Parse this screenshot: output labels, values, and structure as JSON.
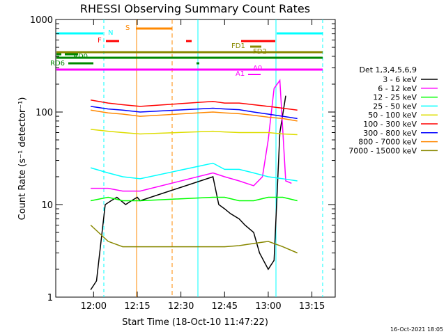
{
  "chart_data": {
    "type": "line",
    "title": "RHESSI Observing Summary Count Rates",
    "xlabel": "Start Time (18-Oct-10 11:47:22)",
    "ylabel": "Count Rate (s⁻¹ detector⁻¹)",
    "y_scale": "log",
    "ylim": [
      1,
      1000
    ],
    "xlim": [
      "11:47",
      "13:23"
    ],
    "x_ticks": [
      "12:00",
      "12:15",
      "12:30",
      "12:45",
      "13:00",
      "13:15"
    ],
    "y_ticks": [
      "1",
      "10",
      "100",
      "1000"
    ],
    "legend_title": "Det 1,3,4,5,6,9",
    "timestamp": "16-Oct-2021 18:05",
    "series": [
      {
        "name": "3 - 6 keV",
        "color": "#000000",
        "x": [
          "11:59",
          "12:01",
          "12:04",
          "12:06",
          "12:08",
          "12:11",
          "12:13",
          "12:15",
          "12:16",
          "12:41",
          "12:43",
          "12:45",
          "12:47",
          "12:50",
          "12:52",
          "12:55",
          "12:57",
          "13:00",
          "13:02",
          "13:04",
          "13:06"
        ],
        "y": [
          1.2,
          1.5,
          10,
          11,
          12,
          10,
          11,
          12,
          11,
          20,
          10,
          9,
          8,
          7,
          6,
          5,
          3,
          2,
          2.5,
          60,
          150
        ]
      },
      {
        "name": "6 - 12 keV",
        "color": "#ff00ff",
        "x": [
          "11:59",
          "12:05",
          "12:10",
          "12:16",
          "12:41",
          "12:45",
          "12:50",
          "12:55",
          "12:58",
          "13:00",
          "13:02",
          "13:04",
          "13:06",
          "13:08"
        ],
        "y": [
          15,
          15,
          14,
          14,
          22,
          20,
          18,
          16,
          20,
          50,
          180,
          220,
          18,
          17
        ]
      },
      {
        "name": "12 - 25 keV",
        "color": "#00ff00",
        "x": [
          "11:59",
          "12:05",
          "12:10",
          "12:16",
          "12:41",
          "12:45",
          "12:50",
          "12:55",
          "13:00",
          "13:05",
          "13:10"
        ],
        "y": [
          11,
          12,
          11,
          11,
          12,
          12,
          11,
          11,
          12,
          12,
          11
        ]
      },
      {
        "name": "25 - 50 keV",
        "color": "#00ffff",
        "x": [
          "11:59",
          "12:05",
          "12:10",
          "12:16",
          "12:41",
          "12:45",
          "12:50",
          "12:55",
          "13:00",
          "13:05",
          "13:10"
        ],
        "y": [
          25,
          22,
          20,
          19,
          28,
          24,
          24,
          22,
          20,
          19,
          18
        ]
      },
      {
        "name": "50 - 100 keV",
        "color": "#dddd00",
        "x": [
          "11:59",
          "12:05",
          "12:10",
          "12:16",
          "12:41",
          "12:45",
          "12:50",
          "12:55",
          "13:00",
          "13:05",
          "13:10"
        ],
        "y": [
          65,
          62,
          60,
          58,
          62,
          61,
          60,
          60,
          60,
          58,
          57
        ]
      },
      {
        "name": "100 - 300 keV",
        "color": "#ff0000",
        "x": [
          "11:59",
          "12:05",
          "12:10",
          "12:16",
          "12:41",
          "12:45",
          "12:50",
          "12:55",
          "13:00",
          "13:05",
          "13:10"
        ],
        "y": [
          135,
          125,
          120,
          115,
          130,
          125,
          125,
          120,
          115,
          110,
          105
        ]
      },
      {
        "name": "300 - 800 keV",
        "color": "#0000ff",
        "x": [
          "11:59",
          "12:05",
          "12:10",
          "12:16",
          "12:41",
          "12:45",
          "12:50",
          "12:55",
          "13:00",
          "13:05",
          "13:10"
        ],
        "y": [
          115,
          108,
          105,
          100,
          110,
          108,
          106,
          100,
          95,
          90,
          85
        ]
      },
      {
        "name": "800 - 7000 keV",
        "color": "#ff8800",
        "x": [
          "11:59",
          "12:05",
          "12:10",
          "12:16",
          "12:41",
          "12:45",
          "12:50",
          "12:55",
          "13:00",
          "13:05",
          "13:10"
        ],
        "y": [
          105,
          98,
          95,
          90,
          100,
          98,
          96,
          92,
          88,
          85,
          80
        ]
      },
      {
        "name": "7000 - 15000 keV",
        "color": "#888800",
        "x": [
          "11:59",
          "12:05",
          "12:10",
          "12:16",
          "12:41",
          "12:45",
          "12:50",
          "12:55",
          "13:00",
          "13:05",
          "13:10"
        ],
        "y": [
          6,
          4,
          3.5,
          3.5,
          3.5,
          3.5,
          3.6,
          3.8,
          4,
          3.5,
          3
        ]
      }
    ],
    "flags": [
      {
        "label": "N",
        "color": "#00ffff"
      },
      {
        "label": "S",
        "color": "#ff8800"
      },
      {
        "label": "F",
        "color": "#ff0000"
      },
      {
        "label": "FD1",
        "color": "#888800"
      },
      {
        "label": "FD2",
        "color": "#888800"
      },
      {
        "label": "RD0",
        "color": "#008800"
      },
      {
        "label": "RD6",
        "color": "#008800"
      },
      {
        "label": "A0",
        "color": "#ff00ff"
      },
      {
        "label": "A1",
        "color": "#ff00ff"
      }
    ]
  }
}
